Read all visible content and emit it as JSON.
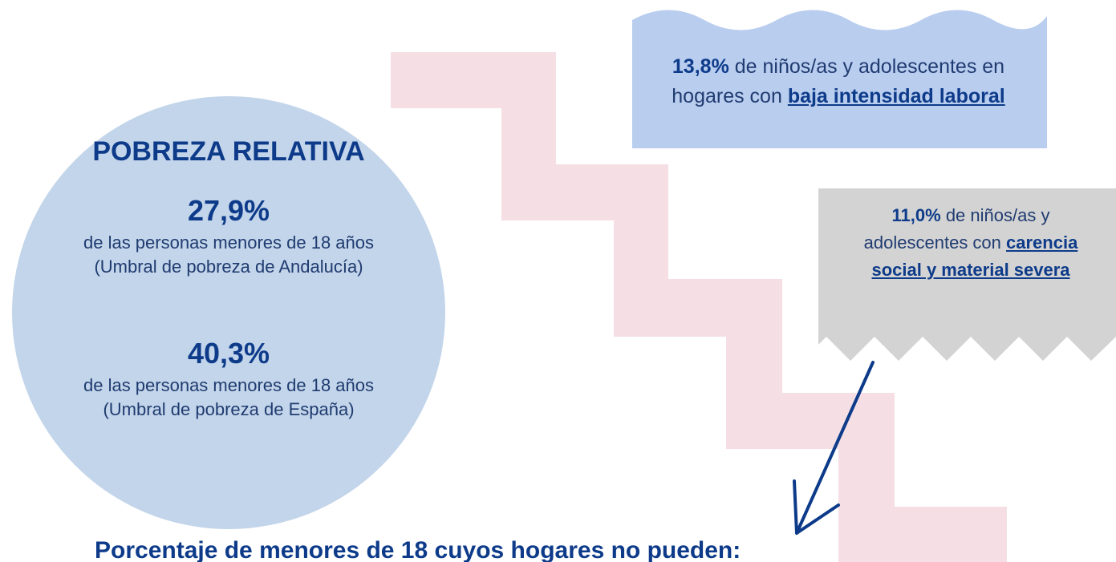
{
  "circle": {
    "title": "POBREZA RELATIVA",
    "items": [
      {
        "value": "27,9%",
        "text": "de las personas menores de 18 años (Umbral de pobreza de Andalucía)"
      },
      {
        "value": "40,3%",
        "text": "de las personas menores de 18 años (Umbral de pobreza de España)"
      }
    ]
  },
  "boxes": [
    {
      "value": "13,8%",
      "text": " de niños/as y adolescentes en hogares con ",
      "emphasis": "baja intensidad laboral"
    },
    {
      "value": "11,0%",
      "text": " de niños/as y adolescentes con ",
      "emphasis": "carencia social y material severa"
    }
  ],
  "footer": {
    "heading": "Porcentaje de menores de 18 cuyos hogares no pueden:"
  }
}
